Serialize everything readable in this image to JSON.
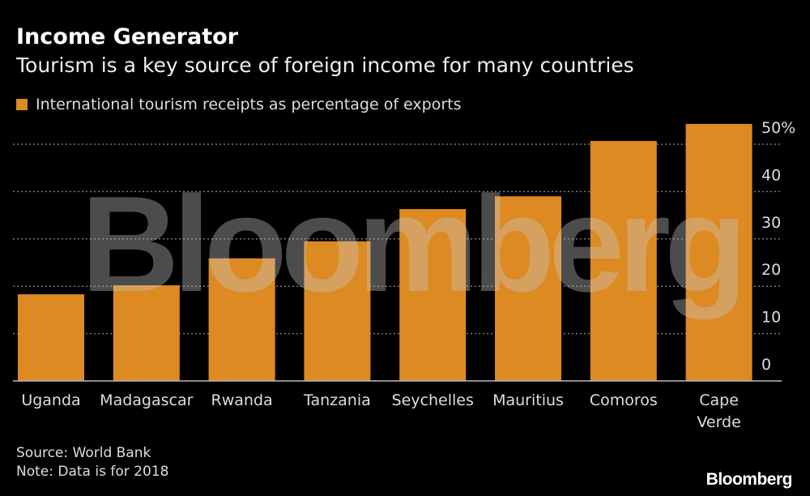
{
  "title": "Income Generator",
  "subtitle": "Tourism is a key source of foreign income for many countries",
  "source": "Source: World Bank",
  "note": "Note: Data is for 2018",
  "logo": "Bloomberg",
  "watermark": "Bloomberg",
  "chart_data": {
    "type": "bar",
    "categories": [
      "Uganda",
      "Madagascar",
      "Rwanda",
      "Tanzania",
      "Seychelles",
      "Mauritius",
      "Comoros",
      "Cape Verde"
    ],
    "series": [
      {
        "name": "International tourism receipts as percentage of exports",
        "values": [
          18.3,
          20.2,
          25.9,
          29.5,
          36.3,
          39.0,
          50.7,
          54.3
        ],
        "color": "#dd8a22"
      }
    ],
    "yticks": [
      "0",
      "10",
      "20",
      "30",
      "40",
      "50%"
    ],
    "ylim": [
      0,
      55
    ],
    "grid": true,
    "yaxis_position": "right",
    "legend_position": "top-left"
  }
}
